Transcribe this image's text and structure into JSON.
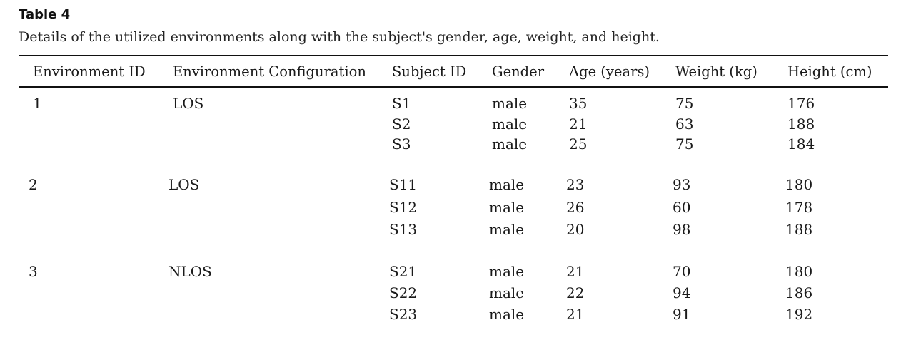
{
  "caption": {
    "label": "Table 4",
    "text": "Details of the utilized environments along with the subject's gender, age, weight, and height."
  },
  "table": {
    "headers": [
      "Environment ID",
      "Environment Configuration",
      "Subject ID",
      "Gender",
      "Age (years)",
      "Weight (kg)",
      "Height (cm)"
    ],
    "groups": [
      {
        "env_id": "1",
        "config": "LOS",
        "rows": [
          {
            "subject": "S1",
            "gender": "male",
            "age": "35",
            "weight": "75",
            "height": "176"
          },
          {
            "subject": "S2",
            "gender": "male",
            "age": "21",
            "weight": "63",
            "height": "188"
          },
          {
            "subject": "S3",
            "gender": "male",
            "age": "25",
            "weight": "75",
            "height": "184"
          }
        ]
      },
      {
        "env_id": "2",
        "config": "LOS",
        "rows": [
          {
            "subject": "S11",
            "gender": "male",
            "age": "23",
            "weight": "93",
            "height": "180"
          },
          {
            "subject": "S12",
            "gender": "male",
            "age": "26",
            "weight": "60",
            "height": "178"
          },
          {
            "subject": "S13",
            "gender": "male",
            "age": "20",
            "weight": "98",
            "height": "188"
          }
        ]
      },
      {
        "env_id": "3",
        "config": "NLOS",
        "rows": [
          {
            "subject": "S21",
            "gender": "male",
            "age": "21",
            "weight": "70",
            "height": "180"
          },
          {
            "subject": "S22",
            "gender": "male",
            "age": "22",
            "weight": "94",
            "height": "186"
          },
          {
            "subject": "S23",
            "gender": "male",
            "age": "21",
            "weight": "91",
            "height": "192"
          }
        ]
      }
    ]
  }
}
